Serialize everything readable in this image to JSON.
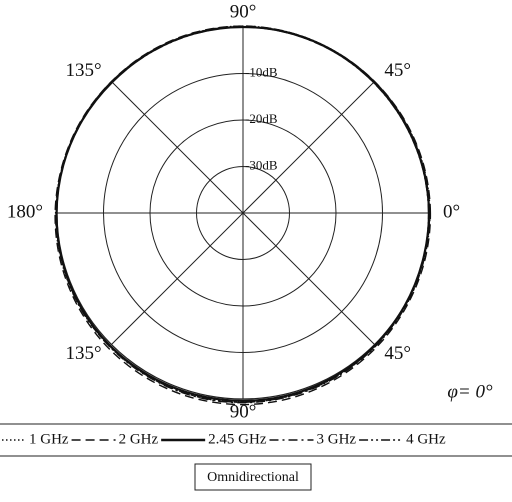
{
  "chart_data": {
    "type": "polar",
    "theta": [
      0,
      15,
      30,
      45,
      60,
      75,
      90,
      105,
      120,
      135,
      150,
      165,
      180,
      195,
      210,
      225,
      240,
      255,
      270,
      285,
      300,
      315,
      330,
      345
    ],
    "rlim": [
      -40,
      0
    ],
    "rticks": [
      {
        "value": -30,
        "label": "-30dB"
      },
      {
        "value": -20,
        "label": "-20dB"
      },
      {
        "value": -10,
        "label": "-10dB"
      }
    ],
    "angle_ticks": [
      {
        "value": 0,
        "label": "0°"
      },
      {
        "value": 45,
        "label": "45°"
      },
      {
        "value": 90,
        "label": "90°"
      },
      {
        "value": 135,
        "label": "135°"
      },
      {
        "value": 180,
        "label": "180°"
      },
      {
        "value": 225,
        "label": "135°"
      },
      {
        "value": 270,
        "label": "90°"
      },
      {
        "value": 315,
        "label": "45°"
      }
    ],
    "series": [
      {
        "name": "1 GHz",
        "color": "#111111",
        "linestyle": "dotted",
        "values": [
          0.2,
          0.1,
          0,
          -0.1,
          0,
          0.1,
          0.2,
          0.1,
          0,
          -0.1,
          0,
          0.1,
          0.3,
          0.4,
          0.5,
          0.6,
          0.6,
          0.7,
          0.7,
          0.6,
          0.5,
          0.4,
          0.3,
          0.2
        ]
      },
      {
        "name": "2 GHz",
        "color": "#111111",
        "linestyle": "dashed",
        "values": [
          0.3,
          0.2,
          0.1,
          0,
          0,
          0.1,
          0.2,
          0.2,
          0.1,
          0,
          0.1,
          0.2,
          0.4,
          0.6,
          0.8,
          1,
          1.1,
          1.2,
          1.2,
          1.1,
          0.9,
          0.7,
          0.5,
          0.4
        ]
      },
      {
        "name": "2.45 GHz",
        "color": "#111111",
        "linestyle": "solid",
        "values": [
          0,
          -0.1,
          -0.2,
          -0.2,
          -0.1,
          0,
          0,
          0,
          -0.1,
          -0.2,
          -0.1,
          0,
          0.1,
          0.2,
          0.3,
          0.4,
          0.4,
          0.4,
          0.4,
          0.4,
          0.3,
          0.2,
          0.1,
          0
        ]
      },
      {
        "name": "3 GHz",
        "color": "#111111",
        "linestyle": "dashdot",
        "values": [
          0.1,
          0,
          -0.1,
          -0.2,
          -0.2,
          -0.1,
          0,
          0,
          -0.1,
          -0.1,
          0,
          0.1,
          0.2,
          0.3,
          0.5,
          0.6,
          0.7,
          0.8,
          0.8,
          0.7,
          0.6,
          0.4,
          0.3,
          0.2
        ]
      },
      {
        "name": "4 GHz",
        "color": "#111111",
        "linestyle": "dashdotdot",
        "values": [
          -0.1,
          -0.2,
          -0.3,
          -0.3,
          -0.2,
          -0.1,
          0,
          -0.1,
          -0.2,
          -0.2,
          -0.1,
          0,
          0.1,
          0.2,
          0.4,
          0.5,
          0.6,
          0.7,
          0.7,
          0.6,
          0.5,
          0.3,
          0.2,
          0
        ]
      }
    ],
    "annotation": "φ= 0°",
    "caption": "Omnidirectional"
  }
}
